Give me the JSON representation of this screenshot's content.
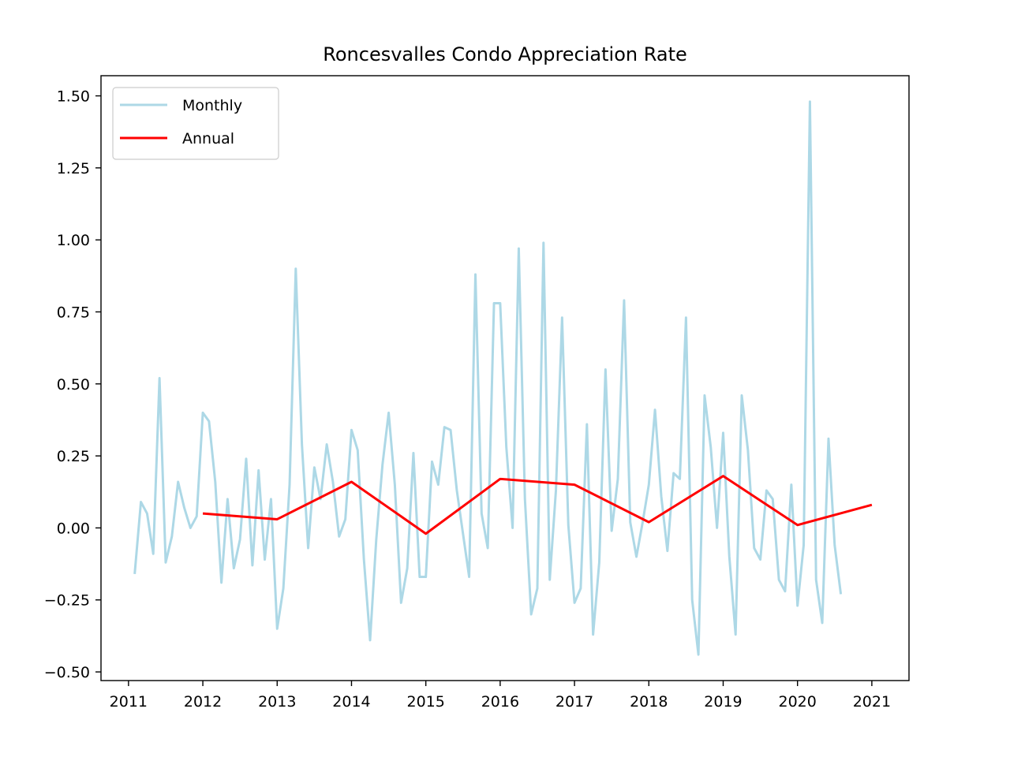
{
  "chart_data": {
    "type": "line",
    "title": "Roncesvalles Condo Appreciation Rate",
    "xlabel": "",
    "ylabel": "",
    "xlim": [
      2010.63,
      2021.5
    ],
    "ylim": [
      -0.53,
      1.57
    ],
    "x_ticks": [
      "2011",
      "2012",
      "2013",
      "2014",
      "2015",
      "2016",
      "2017",
      "2018",
      "2019",
      "2020",
      "2021"
    ],
    "y_ticks": [
      "1.50",
      "1.25",
      "1.00",
      "0.75",
      "0.50",
      "0.25",
      "0.00",
      "−0.25",
      "−0.50"
    ],
    "legend": {
      "placement": "upper-left"
    },
    "grid": false,
    "series": [
      {
        "name": "Monthly",
        "color": "#add8e6",
        "x": [
          2011.083,
          2011.167,
          2011.25,
          2011.333,
          2011.417,
          2011.5,
          2011.583,
          2011.667,
          2011.75,
          2011.833,
          2011.917,
          2012.0,
          2012.083,
          2012.167,
          2012.25,
          2012.333,
          2012.417,
          2012.5,
          2012.583,
          2012.667,
          2012.75,
          2012.833,
          2012.917,
          2013.0,
          2013.083,
          2013.167,
          2013.25,
          2013.333,
          2013.417,
          2013.5,
          2013.583,
          2013.667,
          2013.75,
          2013.833,
          2013.917,
          2014.0,
          2014.083,
          2014.167,
          2014.25,
          2014.333,
          2014.417,
          2014.5,
          2014.583,
          2014.667,
          2014.75,
          2014.833,
          2014.917,
          2015.0,
          2015.083,
          2015.167,
          2015.25,
          2015.333,
          2015.417,
          2015.5,
          2015.583,
          2015.667,
          2015.75,
          2015.833,
          2015.917,
          2016.0,
          2016.083,
          2016.167,
          2016.25,
          2016.333,
          2016.417,
          2016.5,
          2016.583,
          2016.667,
          2016.75,
          2016.833,
          2016.917,
          2017.0,
          2017.083,
          2017.167,
          2017.25,
          2017.333,
          2017.417,
          2017.5,
          2017.583,
          2017.667,
          2017.75,
          2017.833,
          2017.917,
          2018.0,
          2018.083,
          2018.167,
          2018.25,
          2018.333,
          2018.417,
          2018.5,
          2018.583,
          2018.667,
          2018.75,
          2018.833,
          2018.917,
          2019.0,
          2019.083,
          2019.167,
          2019.25,
          2019.333,
          2019.417,
          2019.5,
          2019.583,
          2019.667,
          2019.75,
          2019.833,
          2019.917,
          2020.0,
          2020.083,
          2020.167,
          2020.25,
          2020.333,
          2020.417,
          2020.5,
          2020.583
        ],
        "values": [
          -0.16,
          0.09,
          0.05,
          -0.09,
          0.52,
          -0.12,
          -0.03,
          0.16,
          0.07,
          0.0,
          0.04,
          0.4,
          0.37,
          0.16,
          -0.19,
          0.1,
          -0.14,
          -0.04,
          0.24,
          -0.13,
          0.2,
          -0.11,
          0.1,
          -0.35,
          -0.21,
          0.15,
          0.9,
          0.29,
          -0.07,
          0.21,
          0.1,
          0.29,
          0.16,
          -0.03,
          0.03,
          0.34,
          0.27,
          -0.11,
          -0.39,
          -0.04,
          0.22,
          0.4,
          0.15,
          -0.26,
          -0.14,
          0.26,
          -0.17,
          -0.17,
          0.23,
          0.15,
          0.35,
          0.34,
          0.13,
          -0.02,
          -0.17,
          0.88,
          0.05,
          -0.07,
          0.78,
          0.78,
          0.28,
          0.0,
          0.97,
          0.1,
          -0.3,
          -0.21,
          0.99,
          -0.18,
          0.13,
          0.73,
          0.01,
          -0.26,
          -0.21,
          0.36,
          -0.37,
          -0.12,
          0.55,
          -0.01,
          0.17,
          0.79,
          0.02,
          -0.1,
          0.02,
          0.15,
          0.41,
          0.11,
          -0.08,
          0.19,
          0.17,
          0.73,
          -0.25,
          -0.44,
          0.46,
          0.28,
          0.0,
          0.33,
          -0.1,
          -0.37,
          0.46,
          0.27,
          -0.07,
          -0.11,
          0.13,
          0.1,
          -0.18,
          -0.22,
          0.15,
          -0.27,
          -0.06,
          1.48,
          -0.18,
          -0.33,
          0.31,
          -0.06,
          -0.23
        ]
      },
      {
        "name": "Annual",
        "color": "#ff0000",
        "x": [
          2012,
          2013,
          2014,
          2015,
          2016,
          2017,
          2018,
          2019,
          2020,
          2021
        ],
        "values": [
          0.05,
          0.03,
          0.16,
          -0.02,
          0.17,
          0.15,
          0.02,
          0.18,
          0.01,
          0.08
        ]
      }
    ]
  }
}
